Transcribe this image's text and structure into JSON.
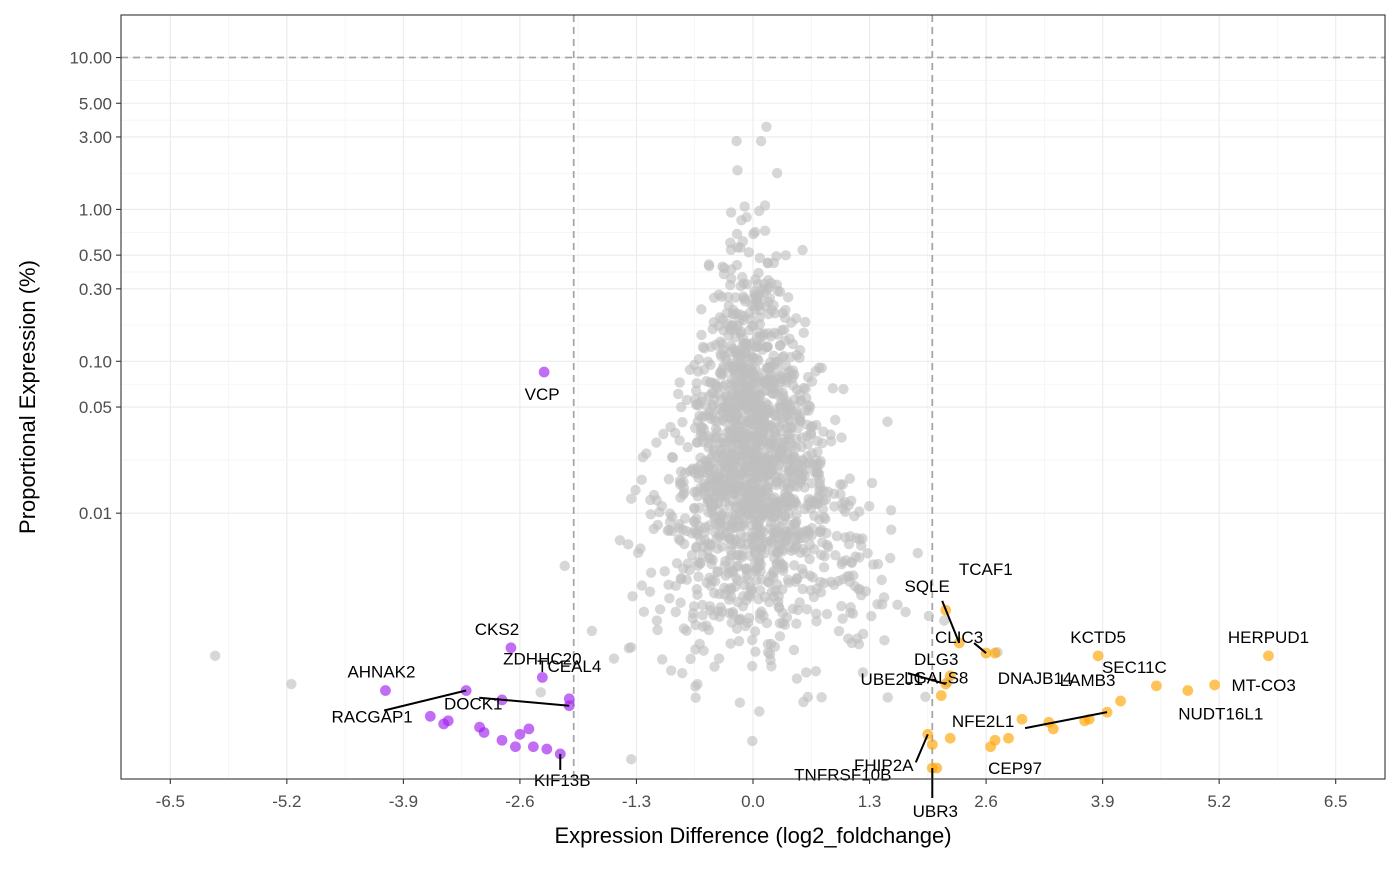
{
  "chart_data": {
    "type": "scatter",
    "xlabel": "Expression Difference (log2_foldchange)",
    "ylabel": "Proportional Expression (%)",
    "xlim": [
      -7.05,
      7.05
    ],
    "ylim_log10": [
      -3.75,
      1.28
    ],
    "y_scale": "log10",
    "grid": true,
    "x_ticks": [
      -6.5,
      -5.2,
      -3.9,
      -2.6,
      -1.3,
      0.0,
      1.3,
      2.6,
      3.9,
      5.2,
      6.5
    ],
    "x_tick_labels": [
      "-6.5",
      "-5.2",
      "-3.9",
      "-2.6",
      "-1.3",
      "0.0",
      "1.3",
      "2.6",
      "3.9",
      "5.2",
      "6.5"
    ],
    "y_ticks": [
      0.01,
      0.05,
      0.1,
      0.3,
      0.5,
      1,
      3,
      5,
      10
    ],
    "y_tick_labels": [
      "0.01",
      "0.05",
      "0.10",
      "0.30",
      "0.50",
      "1.00",
      "3.00",
      "5.00",
      "10.00"
    ],
    "reference_lines": {
      "x": [
        -2.0,
        2.0
      ],
      "y": [
        10
      ]
    },
    "colors": {
      "background_points": "#bebebe",
      "down": "#a020f0",
      "up": "#ffa500",
      "reference_line": "#a6a6a6"
    },
    "background_points_count": 1600,
    "background_outliers": [
      {
        "x": -6.0,
        "y": 0.00115
      },
      {
        "x": -5.15,
        "y": 0.00075
      },
      {
        "x": 0.15,
        "y": 3.5
      },
      {
        "x": -2.1,
        "y": 0.0045
      },
      {
        "x": 1.5,
        "y": 0.04
      }
    ],
    "down_genes": [
      {
        "gene": "VCP",
        "x": -2.33,
        "y": 0.085
      },
      {
        "gene": "CKS2",
        "x": -2.7,
        "y": 0.0013
      },
      {
        "gene": "AHNAK2",
        "x": -4.1,
        "y": 0.00068
      },
      {
        "gene": "RACGAP1",
        "x": -3.2,
        "y": 0.00068
      },
      {
        "gene": "DOCK1",
        "x": -2.05,
        "y": 0.00054
      },
      {
        "gene": "ZDHHC20",
        "x": -2.35,
        "y": 0.00083
      },
      {
        "gene": "TCEAL4",
        "x": -2.05,
        "y": 0.0006
      },
      {
        "gene": "KIF13B",
        "x": -2.15,
        "y": 0.00026
      }
    ],
    "down_unlabeled": [
      {
        "x": -2.8,
        "y": 0.00059
      },
      {
        "x": -3.6,
        "y": 0.00046
      },
      {
        "x": -3.4,
        "y": 0.00043
      },
      {
        "x": -3.45,
        "y": 0.00041
      },
      {
        "x": -3.05,
        "y": 0.00039
      },
      {
        "x": -3.0,
        "y": 0.00036
      },
      {
        "x": -2.5,
        "y": 0.00038
      },
      {
        "x": -2.6,
        "y": 0.00035
      },
      {
        "x": -2.8,
        "y": 0.00032
      },
      {
        "x": -2.65,
        "y": 0.00029
      },
      {
        "x": -2.45,
        "y": 0.00029
      },
      {
        "x": -2.3,
        "y": 0.00028
      }
    ],
    "up_genes": [
      {
        "gene": "SQLE",
        "x": 2.3,
        "y": 0.0014
      },
      {
        "gene": "TCAF1",
        "x": 2.15,
        "y": 0.0023
      },
      {
        "gene": "CLIC3",
        "x": 2.6,
        "y": 0.0012
      },
      {
        "gene": "DNAJB14",
        "x": 2.7,
        "y": 0.0012
      },
      {
        "gene": "KCTD5",
        "x": 3.85,
        "y": 0.00115
      },
      {
        "gene": "HERPUD1",
        "x": 5.75,
        "y": 0.00115
      },
      {
        "gene": "DLG3",
        "x": 2.2,
        "y": 0.00085
      },
      {
        "gene": "UBE2J1",
        "x": 2.15,
        "y": 0.00075
      },
      {
        "gene": "SEC11C",
        "x": 4.5,
        "y": 0.00073
      },
      {
        "gene": "MT-CO3",
        "x": 5.15,
        "y": 0.00074
      },
      {
        "gene": "NUDT16L1",
        "x": 4.85,
        "y": 0.00068
      },
      {
        "gene": "LAMB3",
        "x": 4.1,
        "y": 0.00058
      },
      {
        "gene": "LGALS8",
        "x": 2.1,
        "y": 0.00063
      },
      {
        "gene": "NFE2L1",
        "x": 3.95,
        "y": 0.00049
      },
      {
        "gene": "TNFRSF10B",
        "x": 1.95,
        "y": 0.00035
      },
      {
        "gene": "CEP97",
        "x": 2.7,
        "y": 0.00032
      },
      {
        "gene": "FHIP2A",
        "x": 2.05,
        "y": 0.00021
      },
      {
        "gene": "UBR3",
        "x": 2.0,
        "y": 0.00021
      }
    ],
    "up_unlabeled": [
      {
        "x": 3.0,
        "y": 0.00044
      },
      {
        "x": 3.3,
        "y": 0.00042
      },
      {
        "x": 3.35,
        "y": 0.00038
      },
      {
        "x": 3.7,
        "y": 0.00043
      },
      {
        "x": 3.75,
        "y": 0.00044
      },
      {
        "x": 2.2,
        "y": 0.00033
      },
      {
        "x": 2.85,
        "y": 0.00033
      },
      {
        "x": 2.65,
        "y": 0.00029
      },
      {
        "x": 2.0,
        "y": 0.0003
      }
    ]
  }
}
